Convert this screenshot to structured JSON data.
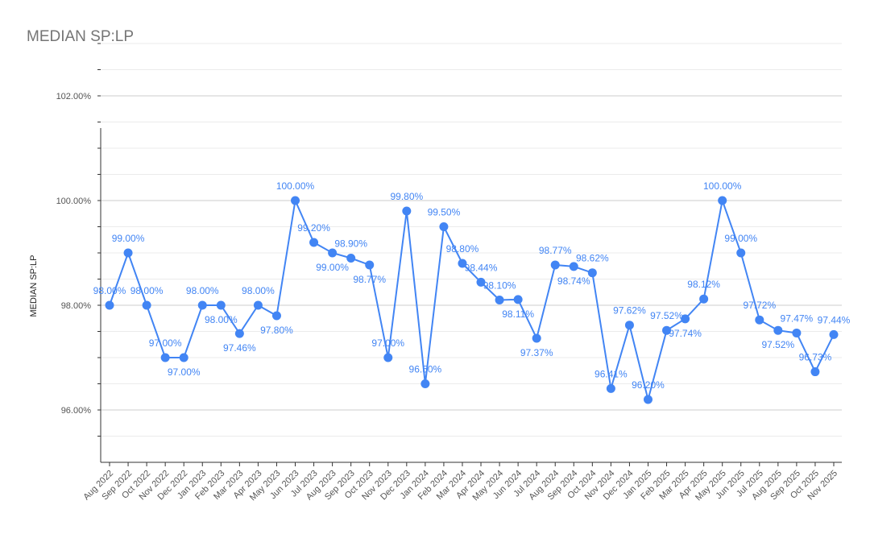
{
  "chart_data": {
    "type": "line",
    "title": "MEDIAN SP:LP",
    "xlabel": "",
    "ylabel": "MEDIAN SP:LP",
    "ylim": [
      95,
      103
    ],
    "yticks": [
      96,
      98,
      100,
      102
    ],
    "ytick_labels": [
      "96.00%",
      "98.00%",
      "100.00%",
      "102.00%"
    ],
    "grid": true,
    "legend": "none",
    "color": "#4285f4",
    "categories": [
      "Aug 2022",
      "Sep 2022",
      "Oct 2022",
      "Nov 2022",
      "Dec 2022",
      "Jan 2023",
      "Feb 2023",
      "Mar 2023",
      "Apr 2023",
      "May 2023",
      "Jun 2023",
      "Jul 2023",
      "Aug 2023",
      "Sep 2023",
      "Oct 2023",
      "Nov 2023",
      "Dec 2023",
      "Jan 2024",
      "Feb 2024",
      "Mar 2024",
      "Apr 2024",
      "May 2024",
      "Jun 2024",
      "Jul 2024",
      "Aug 2024",
      "Sep 2024",
      "Oct 2024",
      "Nov 2024",
      "Dec 2024",
      "Jan 2025",
      "Feb 2025",
      "Mar 2025",
      "Apr 2025",
      "May 2025",
      "Jun 2025",
      "Jul 2025",
      "Aug 2025",
      "Sep 2025",
      "Oct 2025",
      "Nov 2025"
    ],
    "series": [
      {
        "name": "MEDIAN SP:LP",
        "values": [
          98.0,
          99.0,
          98.0,
          97.0,
          97.0,
          98.0,
          98.0,
          97.46,
          98.0,
          97.8,
          100.0,
          99.2,
          99.0,
          98.9,
          98.77,
          97.0,
          99.8,
          96.5,
          99.5,
          98.8,
          98.44,
          98.1,
          98.11,
          97.37,
          98.77,
          98.74,
          98.62,
          96.41,
          97.62,
          96.2,
          97.52,
          97.74,
          98.12,
          100.0,
          99.0,
          97.72,
          97.52,
          97.47,
          96.73,
          97.44
        ]
      }
    ]
  }
}
